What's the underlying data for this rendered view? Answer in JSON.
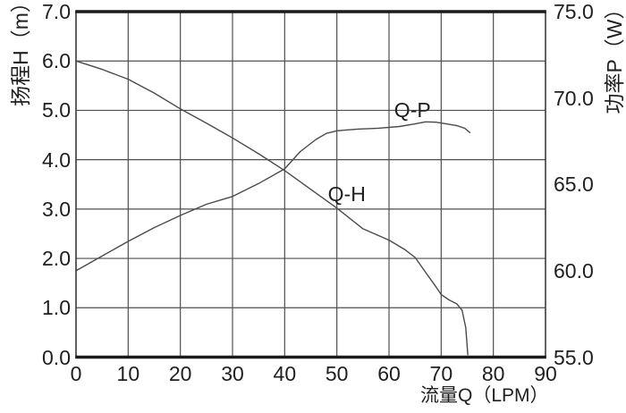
{
  "colors": {
    "text": "#1f1f1f",
    "grid_line": "#4f4f4f",
    "frame": "#1a1a1a",
    "curve": "#4a4a4a",
    "axis_line": "#3a3a3a",
    "background": "#ffffff"
  },
  "chart_data": {
    "type": "line",
    "title": "",
    "grid": true,
    "legend_position": "inline-labels",
    "x_axis": {
      "label": "流量Q（LPM）",
      "min": 0,
      "max": 90,
      "ticks": [
        "0",
        "10",
        "20",
        "30",
        "40",
        "50",
        "60",
        "70",
        "80",
        "90"
      ]
    },
    "y_left": {
      "label": "扬程H（m）",
      "min": 0,
      "max": 7,
      "ticks": [
        "0.0",
        "1.0",
        "2.0",
        "3.0",
        "4.0",
        "5.0",
        "6.0",
        "7.0"
      ]
    },
    "y_right": {
      "label": "功率P（W）",
      "min": 55,
      "max": 75,
      "ticks": [
        "55.0",
        "60.0",
        "65.0",
        "70.0",
        "75.0"
      ]
    },
    "series": [
      {
        "name": "Q-H",
        "label": "Q-H",
        "axis": "left",
        "label_at": [
          51.9,
          3.3
        ],
        "points": [
          [
            0,
            6.0
          ],
          [
            5,
            5.83
          ],
          [
            10,
            5.63
          ],
          [
            15,
            5.35
          ],
          [
            20,
            5.03
          ],
          [
            25,
            4.74
          ],
          [
            30,
            4.44
          ],
          [
            35,
            4.12
          ],
          [
            40,
            3.78
          ],
          [
            45,
            3.4
          ],
          [
            50,
            3.02
          ],
          [
            55,
            2.6
          ],
          [
            60,
            2.37
          ],
          [
            63,
            2.18
          ],
          [
            65,
            2.02
          ],
          [
            67,
            1.72
          ],
          [
            68.5,
            1.5
          ],
          [
            70,
            1.27
          ],
          [
            71.5,
            1.16
          ],
          [
            73,
            1.08
          ],
          [
            74,
            0.95
          ],
          [
            74.7,
            0.6
          ],
          [
            75.1,
            0.05
          ]
        ]
      },
      {
        "name": "Q-P",
        "label": "Q-P",
        "axis": "right",
        "label_at": [
          64.5,
          69.3
        ],
        "points": [
          [
            0,
            60.0
          ],
          [
            5,
            60.85
          ],
          [
            10,
            61.7
          ],
          [
            15,
            62.5
          ],
          [
            20,
            63.2
          ],
          [
            25,
            63.85
          ],
          [
            30,
            64.3
          ],
          [
            35,
            65.05
          ],
          [
            40,
            65.9
          ],
          [
            43,
            66.9
          ],
          [
            46,
            67.6
          ],
          [
            48,
            67.95
          ],
          [
            50,
            68.1
          ],
          [
            54,
            68.2
          ],
          [
            58,
            68.25
          ],
          [
            62,
            68.35
          ],
          [
            65,
            68.5
          ],
          [
            67,
            68.62
          ],
          [
            69,
            68.6
          ],
          [
            71,
            68.5
          ],
          [
            73,
            68.4
          ],
          [
            74.5,
            68.25
          ],
          [
            75.5,
            68.0
          ]
        ]
      }
    ]
  }
}
